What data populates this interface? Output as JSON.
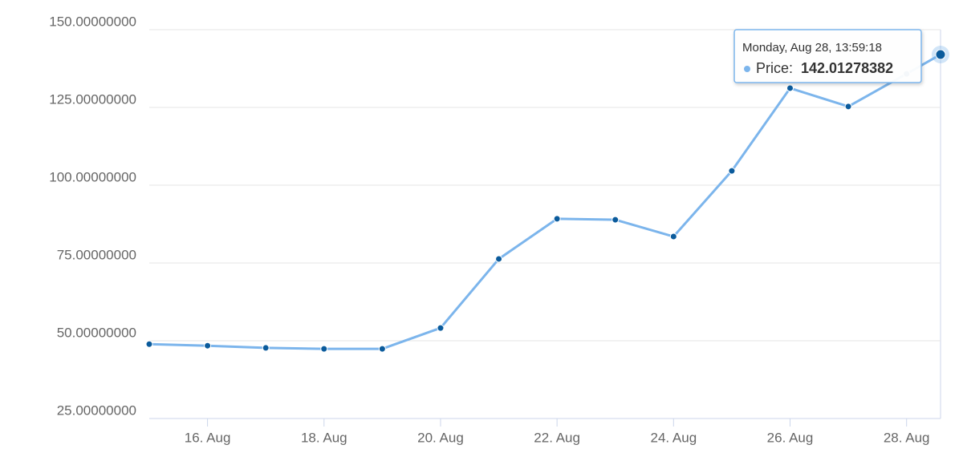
{
  "chart_data": {
    "type": "line",
    "x": [
      15,
      16,
      17,
      18,
      19,
      20,
      21,
      22,
      23,
      24,
      25,
      26,
      27,
      28,
      28.5828
    ],
    "series": [
      {
        "name": "Price",
        "color": "#7cb5ec",
        "marker_color": "#0b5b9c",
        "values": [
          48.9,
          48.4,
          47.7,
          47.4,
          47.4,
          54.1,
          76.3,
          89.2,
          88.9,
          83.5,
          104.6,
          131.2,
          125.3,
          135.8,
          142.01278382
        ]
      }
    ],
    "xlim": [
      15,
      28.5828
    ],
    "xticks": [
      {
        "value": 16,
        "label": "16. Aug"
      },
      {
        "value": 18,
        "label": "18. Aug"
      },
      {
        "value": 20,
        "label": "20. Aug"
      },
      {
        "value": 22,
        "label": "22. Aug"
      },
      {
        "value": 24,
        "label": "24. Aug"
      },
      {
        "value": 26,
        "label": "26. Aug"
      },
      {
        "value": 28,
        "label": "28. Aug"
      }
    ],
    "ylim": [
      25,
      150
    ],
    "yticks": [
      {
        "value": 25,
        "label": "25.00000000"
      },
      {
        "value": 50,
        "label": "50.00000000"
      },
      {
        "value": 75,
        "label": "75.00000000"
      },
      {
        "value": 100,
        "label": "100.00000000"
      },
      {
        "value": 125,
        "label": "125.00000000"
      },
      {
        "value": 150,
        "label": "150.00000000"
      }
    ],
    "grid": true,
    "tooltip": {
      "header": "Monday, Aug 28, 13:59:18",
      "label": "Price:"
    }
  }
}
